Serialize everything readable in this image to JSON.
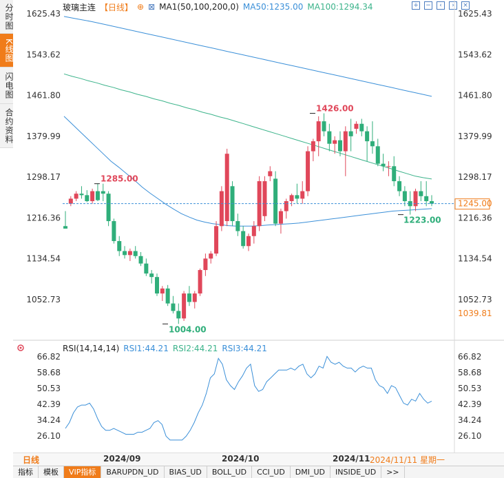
{
  "sidebar": {
    "tabs": [
      {
        "label": "分时图",
        "active": false
      },
      {
        "label": "K线图",
        "active": true
      },
      {
        "label": "闪电图",
        "active": false
      },
      {
        "label": "合约资料",
        "active": false
      }
    ]
  },
  "legend": {
    "name": "玻璃主连",
    "period": "【日线】",
    "ma1": "MA1(50,100,200,0)",
    "ma50": "MA50:1235.00",
    "ma100": "MA100:1294.34"
  },
  "toolbar_icons": [
    "zoom-in-icon",
    "zoom-out-icon",
    "pan-left-icon",
    "pan-right-icon",
    "close-icon"
  ],
  "price_axis": {
    "ticks": [
      "1625.43",
      "1543.62",
      "1461.80",
      "1379.99",
      "1298.17",
      "1216.36",
      "1134.54",
      "1052.73"
    ],
    "current_price": "1245.00",
    "low_label": "1039.81"
  },
  "annotations": {
    "high1": "1285.00",
    "high2": "1426.00",
    "low1": "1004.00",
    "low2": "1223.00"
  },
  "rsi": {
    "title": "RSI(14,14,14)",
    "rsi1": "RSI1:44.21",
    "rsi2": "RSI2:44.21",
    "rsi3": "RSI3:44.21",
    "ticks": [
      "66.82",
      "58.68",
      "50.53",
      "42.39",
      "34.24",
      "26.10"
    ]
  },
  "date_axis": {
    "period_label": "日线",
    "dates": [
      "2024/09",
      "2024/10",
      "2024/11"
    ],
    "cursor_date": "2024/11/11 星期一"
  },
  "bottom_tabs": [
    "指标",
    "模板",
    "VIP指标",
    "BARUPDN_UD",
    "BIAS_UD",
    "BOLL_UD",
    "CCI_UD",
    "DMI_UD",
    "INSIDE_UD",
    ">>"
  ],
  "colors": {
    "up": "#e0475a",
    "down": "#2fae7a",
    "ma50": "#3a8fd8",
    "ma100": "#3bb38a",
    "accent": "#f07c1a"
  },
  "chart_data": {
    "type": "candlestick",
    "title": "玻璃主连",
    "ylim": [
      1000,
      1640
    ],
    "candles": [
      [
        1200,
        1230,
        1195,
        1195
      ],
      [
        1245,
        1260,
        1240,
        1255
      ],
      [
        1255,
        1270,
        1250,
        1265
      ],
      [
        1265,
        1280,
        1255,
        1262
      ],
      [
        1262,
        1272,
        1248,
        1250
      ],
      [
        1250,
        1275,
        1245,
        1270
      ],
      [
        1270,
        1285,
        1250,
        1252
      ],
      [
        1270,
        1285,
        1250,
        1265
      ],
      [
        1265,
        1270,
        1200,
        1210
      ],
      [
        1210,
        1215,
        1165,
        1170
      ],
      [
        1170,
        1180,
        1140,
        1150
      ],
      [
        1150,
        1160,
        1135,
        1142
      ],
      [
        1142,
        1155,
        1130,
        1150
      ],
      [
        1150,
        1160,
        1135,
        1140
      ],
      [
        1140,
        1148,
        1120,
        1125
      ],
      [
        1125,
        1135,
        1100,
        1105
      ],
      [
        1105,
        1112,
        1085,
        1098
      ],
      [
        1098,
        1105,
        1060,
        1065
      ],
      [
        1065,
        1080,
        1050,
        1075
      ],
      [
        1075,
        1082,
        1040,
        1045
      ],
      [
        1045,
        1060,
        1025,
        1030
      ],
      [
        1030,
        1045,
        1004,
        1015
      ],
      [
        1015,
        1070,
        1010,
        1065
      ],
      [
        1065,
        1080,
        1040,
        1048
      ],
      [
        1048,
        1070,
        1035,
        1065
      ],
      [
        1065,
        1115,
        1060,
        1112
      ],
      [
        1112,
        1145,
        1100,
        1135
      ],
      [
        1135,
        1150,
        1125,
        1145
      ],
      [
        1145,
        1210,
        1140,
        1200
      ],
      [
        1200,
        1280,
        1190,
        1270
      ],
      [
        1210,
        1355,
        1200,
        1345
      ],
      [
        1280,
        1290,
        1200,
        1210
      ],
      [
        1210,
        1225,
        1180,
        1190
      ],
      [
        1190,
        1200,
        1155,
        1160
      ],
      [
        1160,
        1185,
        1150,
        1180
      ],
      [
        1180,
        1210,
        1165,
        1200
      ],
      [
        1200,
        1300,
        1190,
        1290
      ],
      [
        1220,
        1300,
        1210,
        1290
      ],
      [
        1300,
        1320,
        1290,
        1310
      ],
      [
        1295,
        1310,
        1200,
        1205
      ],
      [
        1205,
        1235,
        1185,
        1230
      ],
      [
        1230,
        1255,
        1215,
        1250
      ],
      [
        1250,
        1265,
        1240,
        1262
      ],
      [
        1262,
        1285,
        1245,
        1255
      ],
      [
        1255,
        1290,
        1245,
        1270
      ],
      [
        1270,
        1360,
        1260,
        1350
      ],
      [
        1350,
        1375,
        1330,
        1370
      ],
      [
        1370,
        1420,
        1340,
        1410
      ],
      [
        1410,
        1426,
        1380,
        1390
      ],
      [
        1390,
        1405,
        1350,
        1365
      ],
      [
        1365,
        1380,
        1345,
        1372
      ],
      [
        1372,
        1390,
        1340,
        1350
      ],
      [
        1350,
        1400,
        1300,
        1390
      ],
      [
        1390,
        1415,
        1350,
        1380
      ],
      [
        1395,
        1410,
        1385,
        1405
      ],
      [
        1405,
        1415,
        1380,
        1390
      ],
      [
        1390,
        1400,
        1330,
        1370
      ],
      [
        1370,
        1410,
        1345,
        1360
      ],
      [
        1360,
        1375,
        1320,
        1325
      ],
      [
        1325,
        1345,
        1310,
        1320
      ],
      [
        1320,
        1330,
        1300,
        1320
      ],
      [
        1320,
        1340,
        1280,
        1290
      ],
      [
        1290,
        1300,
        1260,
        1270
      ],
      [
        1270,
        1280,
        1240,
        1250
      ],
      [
        1250,
        1270,
        1223,
        1240
      ],
      [
        1240,
        1275,
        1230,
        1270
      ],
      [
        1270,
        1290,
        1250,
        1260
      ],
      [
        1260,
        1290,
        1240,
        1250
      ],
      [
        1250,
        1262,
        1240,
        1245
      ]
    ],
    "ma50": [
      1420,
      1405,
      1390,
      1375,
      1360,
      1345,
      1330,
      1318,
      1305,
      1292,
      1278,
      1266,
      1255,
      1244,
      1234,
      1225,
      1218,
      1212,
      1208,
      1205,
      1203,
      1201,
      1200,
      1200,
      1200,
      1201,
      1202,
      1203,
      1204,
      1205,
      1206,
      1208,
      1210,
      1212,
      1214,
      1216,
      1218,
      1220,
      1222,
      1224,
      1226,
      1228,
      1230,
      1231,
      1232,
      1233,
      1234,
      1235
    ],
    "ma100": [
      1505,
      1500,
      1496,
      1491,
      1487,
      1482,
      1478,
      1473,
      1469,
      1464,
      1460,
      1455,
      1451,
      1446,
      1442,
      1437,
      1433,
      1428,
      1424,
      1419,
      1415,
      1410,
      1405,
      1400,
      1395,
      1390,
      1385,
      1380,
      1375,
      1370,
      1365,
      1360,
      1355,
      1350,
      1345,
      1340,
      1335,
      1330,
      1325,
      1320,
      1315,
      1310,
      1305,
      1300,
      1297,
      1294.34
    ],
    "ma200": [
      1620,
      1615,
      1610,
      1604,
      1598,
      1592,
      1586,
      1580,
      1574,
      1568,
      1562,
      1556,
      1550,
      1544,
      1538,
      1532,
      1526,
      1520,
      1514,
      1508,
      1502,
      1496,
      1490,
      1484,
      1478,
      1472,
      1466,
      1460
    ],
    "rsi_values": [
      30,
      33,
      38,
      41,
      42,
      42,
      43,
      40,
      35,
      31,
      29,
      29,
      30,
      29,
      28,
      27,
      27,
      27,
      28,
      28,
      29,
      30,
      33,
      34,
      32,
      26,
      24,
      24,
      24,
      24,
      26,
      29,
      33,
      38,
      42,
      48,
      56,
      58,
      66,
      63,
      55,
      52,
      50,
      54,
      57,
      61,
      63,
      52,
      49,
      50,
      54,
      56,
      58,
      60,
      60,
      60,
      61,
      60,
      62,
      63,
      58,
      56,
      58,
      62,
      61,
      67,
      64,
      63,
      64,
      62,
      61,
      61,
      59,
      61,
      62,
      61,
      61,
      55,
      52,
      51,
      48,
      52,
      51,
      47,
      43,
      42,
      45,
      44,
      48,
      45,
      43,
      44
    ]
  }
}
